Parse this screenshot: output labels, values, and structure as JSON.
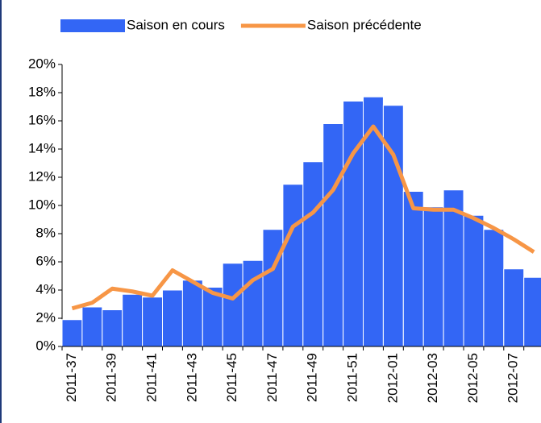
{
  "chart_data": {
    "type": "bar-line",
    "categories": [
      "2011-37",
      null,
      "2011-39",
      null,
      "2011-41",
      null,
      "2011-43",
      null,
      "2011-45",
      null,
      "2011-47",
      null,
      "2011-49",
      null,
      "2011-51",
      null,
      "2012-01",
      null,
      "2012-03",
      null,
      "2012-05",
      null,
      "2012-07",
      null
    ],
    "series": [
      {
        "name": "Saison en cours",
        "type": "bar",
        "color": "#3366f5",
        "values": [
          1.9,
          2.8,
          2.6,
          3.7,
          3.5,
          4.0,
          4.7,
          4.2,
          5.9,
          6.1,
          8.3,
          11.5,
          13.1,
          15.8,
          17.4,
          17.7,
          17.1,
          11.0,
          9.9,
          11.1,
          9.3,
          8.3,
          5.5,
          4.9
        ]
      },
      {
        "name": "Saison précédente",
        "type": "line",
        "color": "#f79646",
        "values": [
          2.7,
          3.1,
          4.1,
          3.9,
          3.6,
          5.4,
          4.6,
          3.8,
          3.4,
          4.7,
          5.5,
          8.5,
          9.5,
          11.1,
          13.7,
          15.6,
          13.6,
          9.8,
          9.7,
          9.7,
          9.1,
          8.4,
          7.6,
          6.7
        ]
      }
    ],
    "ylim": [
      0,
      20
    ],
    "yticks": [
      {
        "value": 0,
        "label": "0%"
      },
      {
        "value": 2,
        "label": "2%"
      },
      {
        "value": 4,
        "label": "4%"
      },
      {
        "value": 6,
        "label": "6%"
      },
      {
        "value": 8,
        "label": "8%"
      },
      {
        "value": 10,
        "label": "10%"
      },
      {
        "value": 12,
        "label": "12%"
      },
      {
        "value": 14,
        "label": "14%"
      },
      {
        "value": 16,
        "label": "16%"
      },
      {
        "value": 18,
        "label": "18%"
      },
      {
        "value": 20,
        "label": "20%"
      }
    ],
    "legend": "top"
  }
}
